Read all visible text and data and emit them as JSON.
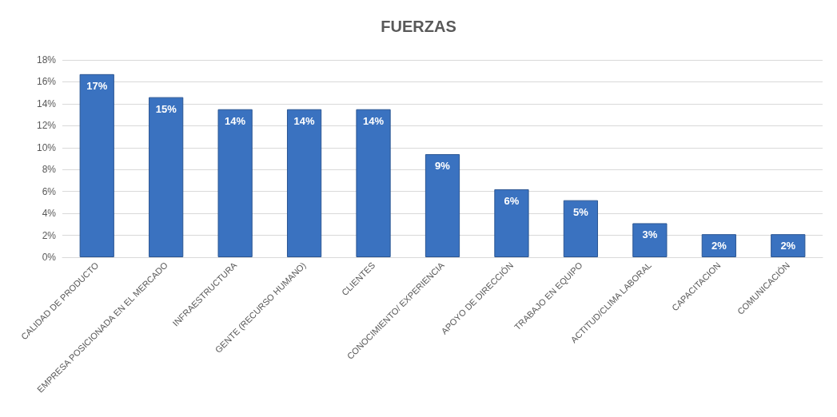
{
  "chart_data": {
    "type": "bar",
    "title": "FUERZAS",
    "categories": [
      "CALIDAD DE PRODUCTO",
      "EMPRESA POSICIONADA EN EL MERCADO",
      "INFRAESTRUCTURA",
      "GENTE (RECURSO HUMANO)",
      "CLIENTES",
      "CONOCIMIENTO/ EXPERIENCIA",
      "APOYO DE DIRECCIÓN",
      "TRABAJO EN EQUIPO",
      "ACTITUD/CLIMA LABORAL",
      "CAPACITACION",
      "COMUNICACIÓN"
    ],
    "values": [
      16.7,
      14.6,
      13.5,
      13.5,
      13.5,
      9.4,
      6.2,
      5.2,
      3.1,
      2.1,
      2.1
    ],
    "value_labels": [
      "17%",
      "15%",
      "14%",
      "14%",
      "14%",
      "9%",
      "6%",
      "5%",
      "3%",
      "2%",
      "2%"
    ],
    "color": "#3a72c0",
    "ylim": [
      0,
      18
    ],
    "yticks": [
      {
        "value": 0,
        "label": "0%"
      },
      {
        "value": 2,
        "label": "2%"
      },
      {
        "value": 4,
        "label": "4%"
      },
      {
        "value": 6,
        "label": "6%"
      },
      {
        "value": 8,
        "label": "8%"
      },
      {
        "value": 10,
        "label": "10%"
      },
      {
        "value": 12,
        "label": "12%"
      },
      {
        "value": 14,
        "label": "14%"
      },
      {
        "value": 16,
        "label": "16%"
      },
      {
        "value": 18,
        "label": "18%"
      }
    ],
    "grid": "y",
    "legend": false
  }
}
